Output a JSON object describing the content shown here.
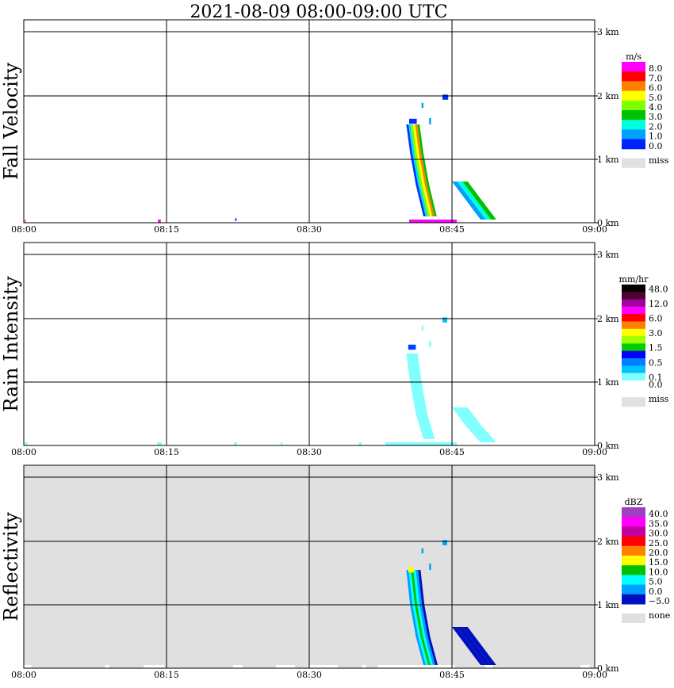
{
  "title": "2021-08-09   08:00-09:00 UTC",
  "chart_data": [
    {
      "type": "heatmap",
      "panel_label": "Fall Velocity",
      "x_ticks": [
        "08:00",
        "08:15",
        "08:30",
        "08:45",
        "09:00"
      ],
      "y_ticks": [
        "0 km",
        "1 km",
        "2 km",
        "3 km"
      ],
      "ylim_km": [
        0,
        3.2
      ],
      "xlim": [
        "08:00",
        "09:00"
      ],
      "background": "#ffffff",
      "legend_unit": "m/s",
      "legend": [
        {
          "label": "8.0",
          "color": "#ff00ff"
        },
        {
          "label": "7.0",
          "color": "#ff0000"
        },
        {
          "label": "6.0",
          "color": "#ff8000"
        },
        {
          "label": "5.0",
          "color": "#ffff00"
        },
        {
          "label": "4.0",
          "color": "#80ff00"
        },
        {
          "label": "3.0",
          "color": "#00c000"
        },
        {
          "label": "2.0",
          "color": "#00ffe0"
        },
        {
          "label": "1.0",
          "color": "#00a0ff"
        },
        {
          "label": "0.0",
          "color": "#0020ff"
        }
      ],
      "miss_label": "miss",
      "features": [
        {
          "kind": "streak",
          "band_order": [
            "#0030ff",
            "#00e0e0",
            "#80ff00",
            "#ffff00",
            "#ff8000",
            "#00c000"
          ],
          "points": [
            [
              40.2,
              1.55
            ],
            [
              40.6,
              1.1
            ],
            [
              41.2,
              0.6
            ],
            [
              42.0,
              0.1
            ]
          ],
          "width_min": 1.4
        },
        {
          "kind": "cap",
          "color": "#0030ff",
          "minute": 40.5,
          "km": 1.6,
          "w_min": 0.8,
          "h_km": 0.08
        },
        {
          "kind": "blob",
          "color": "#0030ff",
          "minute": 44.0,
          "km": 1.98,
          "w_min": 0.6,
          "h_km": 0.08
        },
        {
          "kind": "blob",
          "color": "#00a0ff",
          "minute": 41.8,
          "km": 1.85,
          "w_min": 0.2,
          "h_km": 0.08
        },
        {
          "kind": "blob",
          "color": "#00a0ff",
          "minute": 42.6,
          "km": 1.6,
          "w_min": 0.2,
          "h_km": 0.1
        },
        {
          "kind": "streak2",
          "points": [
            [
              45.0,
              0.65
            ],
            [
              46.5,
              0.35
            ],
            [
              48.0,
              0.05
            ]
          ],
          "colors": [
            "#00a0ff",
            "#00ffe0",
            "#00c000"
          ]
        },
        {
          "kind": "surface",
          "color": "#ff00ff",
          "ranges": [
            [
              0.1,
              0.2
            ],
            [
              14.1,
              14.4
            ],
            [
              40.5,
              45.5
            ]
          ]
        },
        {
          "kind": "blob",
          "color": "#0030ff",
          "minute": 22.2,
          "km": 0.05,
          "w_min": 0.15,
          "h_km": 0.04
        }
      ]
    },
    {
      "type": "heatmap",
      "panel_label": "Rain Intensity",
      "x_ticks": [
        "08:00",
        "08:15",
        "08:30",
        "08:45",
        "09:00"
      ],
      "y_ticks": [
        "0 km",
        "1 km",
        "2 km",
        "3 km"
      ],
      "ylim_km": [
        0,
        3.2
      ],
      "xlim": [
        "08:00",
        "09:00"
      ],
      "background": "#ffffff",
      "legend_unit": "mm/hr",
      "legend": [
        {
          "label": "48.0",
          "color": "#000000"
        },
        {
          "label": "",
          "color": "#500030"
        },
        {
          "label": "12.0",
          "color": "#a000a0"
        },
        {
          "label": "",
          "color": "#ff00ff"
        },
        {
          "label": "6.0",
          "color": "#ff0000"
        },
        {
          "label": "",
          "color": "#ff8000"
        },
        {
          "label": "3.0",
          "color": "#ffff00"
        },
        {
          "label": "",
          "color": "#a0ff00"
        },
        {
          "label": "1.5",
          "color": "#00d000"
        },
        {
          "label": "",
          "color": "#0000ff"
        },
        {
          "label": "0.5",
          "color": "#0080ff"
        },
        {
          "label": "",
          "color": "#00c0ff"
        },
        {
          "label": "0.1",
          "color": "#80ffff"
        },
        {
          "label": "0.0",
          "color": "#ffffff"
        }
      ],
      "miss_label": "miss",
      "features": [
        {
          "kind": "streak",
          "band_order": [
            "#80ffff"
          ],
          "points": [
            [
              40.2,
              1.45
            ],
            [
              40.6,
              1.0
            ],
            [
              41.2,
              0.5
            ],
            [
              42.0,
              0.1
            ]
          ],
          "width_min": 1.2
        },
        {
          "kind": "cap",
          "color": "#0040ff",
          "minute": 40.4,
          "km": 1.55,
          "w_min": 0.8,
          "h_km": 0.08
        },
        {
          "kind": "blob",
          "color": "#00c0ff",
          "minute": 44.0,
          "km": 1.98,
          "w_min": 0.5,
          "h_km": 0.08
        },
        {
          "kind": "blob",
          "color": "#80ffff",
          "minute": 41.8,
          "km": 1.85,
          "w_min": 0.2,
          "h_km": 0.08
        },
        {
          "kind": "blob",
          "color": "#80ffff",
          "minute": 42.6,
          "km": 1.6,
          "w_min": 0.2,
          "h_km": 0.1
        },
        {
          "kind": "streak2",
          "points": [
            [
              45.0,
              0.6
            ],
            [
              46.5,
              0.3
            ],
            [
              48.0,
              0.05
            ]
          ],
          "colors": [
            "#80ffff",
            "#80ffff",
            "#80ffff"
          ]
        },
        {
          "kind": "surface",
          "color": "#80ffff",
          "ranges": [
            [
              0.1,
              0.4
            ],
            [
              14.0,
              14.5
            ],
            [
              22.1,
              22.4
            ],
            [
              27.0,
              27.2
            ],
            [
              35.2,
              35.5
            ],
            [
              38.0,
              45.5
            ]
          ]
        }
      ]
    },
    {
      "type": "heatmap",
      "panel_label": "Reflectivity",
      "x_ticks": [
        "08:00",
        "08:15",
        "08:30",
        "08:45",
        "09:00"
      ],
      "y_ticks": [
        "0 km",
        "1 km",
        "2 km",
        "3 km"
      ],
      "ylim_km": [
        0,
        3.2
      ],
      "xlim": [
        "08:00",
        "09:00"
      ],
      "background": "#e0e0e0",
      "legend_unit": "dBZ",
      "legend": [
        {
          "label": "40.0",
          "color": "#a040c0"
        },
        {
          "label": "35.0",
          "color": "#ff00ff"
        },
        {
          "label": "30.0",
          "color": "#c000a0"
        },
        {
          "label": "25.0",
          "color": "#ff0000"
        },
        {
          "label": "20.0",
          "color": "#ff8000"
        },
        {
          "label": "15.0",
          "color": "#ffff00"
        },
        {
          "label": "10.0",
          "color": "#00c000"
        },
        {
          "label": "5.0",
          "color": "#00ffff"
        },
        {
          "label": "0.0",
          "color": "#00a0ff"
        },
        {
          "label": "−5.0",
          "color": "#0010c0"
        }
      ],
      "miss_label": "none",
      "features": [
        {
          "kind": "streak",
          "band_order": [
            "#00a0ff",
            "#00ffff",
            "#00c000",
            "#00ffff",
            "#00a0ff",
            "#0010c0"
          ],
          "points": [
            [
              40.2,
              1.55
            ],
            [
              40.6,
              1.0
            ],
            [
              41.2,
              0.5
            ],
            [
              42.0,
              0.05
            ]
          ],
          "width_min": 1.5
        },
        {
          "kind": "cap",
          "color": "#ffff00",
          "minute": 40.4,
          "km": 1.55,
          "w_min": 0.6,
          "h_km": 0.08
        },
        {
          "kind": "blob",
          "color": "#00a0ff",
          "minute": 44.0,
          "km": 1.98,
          "w_min": 0.5,
          "h_km": 0.08
        },
        {
          "kind": "blob",
          "color": "#00a0ff",
          "minute": 41.8,
          "km": 1.85,
          "w_min": 0.2,
          "h_km": 0.08
        },
        {
          "kind": "blob",
          "color": "#00a0ff",
          "minute": 42.6,
          "km": 1.6,
          "w_min": 0.2,
          "h_km": 0.1
        },
        {
          "kind": "streak2",
          "points": [
            [
              45.0,
              0.65
            ],
            [
              46.5,
              0.35
            ],
            [
              48.0,
              0.05
            ]
          ],
          "colors": [
            "#0010c0",
            "#0010c0",
            "#0010c0"
          ]
        },
        {
          "kind": "surface",
          "color": "#ffffff",
          "ranges": [
            [
              0.0,
              0.8
            ],
            [
              8.5,
              9.0
            ],
            [
              12.6,
              14.8
            ],
            [
              22.0,
              23.0
            ],
            [
              26.5,
              28.5
            ],
            [
              30.0,
              33.0
            ],
            [
              35.5,
              36.0
            ],
            [
              37.2,
              45.3
            ],
            [
              48.5,
              49.3
            ],
            [
              58.5,
              59.5
            ]
          ]
        }
      ]
    }
  ]
}
